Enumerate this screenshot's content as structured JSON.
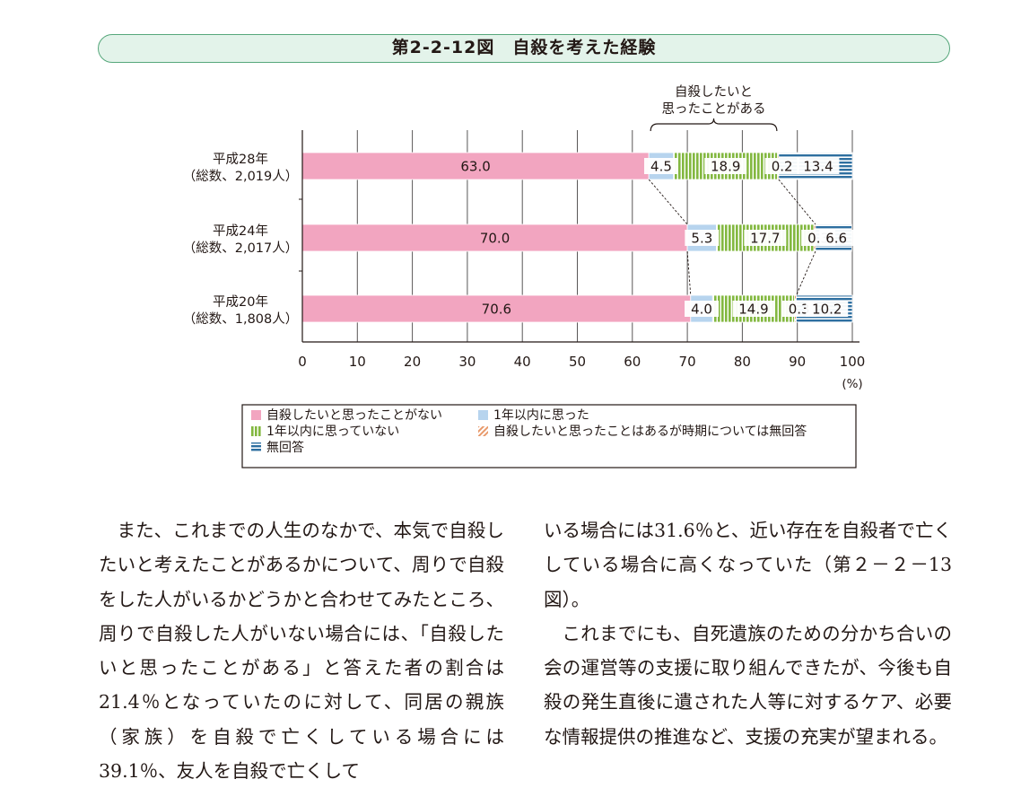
{
  "figure": {
    "title": "第2-2-12図　自殺を考えた経験"
  },
  "chart_data": {
    "type": "bar",
    "orientation": "horizontal",
    "stacked": true,
    "categories": [
      {
        "line1": "平成28年",
        "line2": "（総数、2,019人）"
      },
      {
        "line1": "平成24年",
        "line2": "（総数、2,017人）"
      },
      {
        "line1": "平成20年",
        "line2": "（総数、1,808人）"
      }
    ],
    "series": [
      {
        "name": "自殺したいと思ったことがない",
        "color": "#f2a5c0",
        "pattern": "solid",
        "values": [
          63.0,
          70.0,
          70.6
        ],
        "labels": [
          "63.0",
          "70.0",
          "70.6"
        ]
      },
      {
        "name": "1年以内に思った",
        "color": "#b7d4ee",
        "pattern": "solid",
        "values": [
          4.5,
          5.3,
          4.0
        ],
        "labels": [
          "4.5",
          "5.3",
          "4.0"
        ]
      },
      {
        "name": "1年以内に思っていない",
        "color": "#83b840",
        "pattern": "vertical-stripes",
        "values": [
          18.9,
          17.7,
          14.9
        ],
        "labels": [
          "18.9",
          "17.7",
          "14.9"
        ]
      },
      {
        "name": "自殺したいと思ったことはあるが時期については無回答",
        "color": "#e89a6c",
        "pattern": "diagonal-stripes",
        "values": [
          0.2,
          0.3,
          0.3
        ],
        "labels": [
          "0.2",
          "0.3",
          "0.3"
        ]
      },
      {
        "name": "無回答",
        "color": "#2e6fa0",
        "pattern": "horizontal-stripes",
        "values": [
          13.4,
          6.6,
          10.2
        ],
        "labels": [
          "13.4",
          "6.6",
          "10.2"
        ]
      }
    ],
    "xlim": [
      0,
      100
    ],
    "xticks": [
      "0",
      "10",
      "20",
      "30",
      "40",
      "50",
      "60",
      "70",
      "80",
      "90",
      "100"
    ],
    "xunit": "(%)",
    "bracket_label": [
      "自殺したいと",
      "思ったことがある"
    ],
    "grid": true,
    "legend_position": "bottom-center"
  },
  "body": {
    "left_paragraphs": [
      "また、これまでの人生のなかで、本気で自殺したいと考えたことがあるかについて、周りで自殺をした人がいるかどうかと合わせてみたところ、周りで自殺した人がいない場合には、「自殺したいと思ったことがある」と答えた者の割合は21.4％となっていたのに対して、同居の親族（家族）を自殺で亡くしている場合には39.1％、友人を自殺で亡くして"
    ],
    "right_paragraphs": [
      "いる場合には31.6％と、近い存在を自殺者で亡くしている場合に高くなっていた（第２－２－13図）。",
      "これまでにも、自死遺族のための分かち合いの会の運営等の支援に取り組んできたが、今後も自殺の発生直後に遺された人等に対するケア、必要な情報提供の推進など、支援の充実が望まれる。"
    ]
  }
}
